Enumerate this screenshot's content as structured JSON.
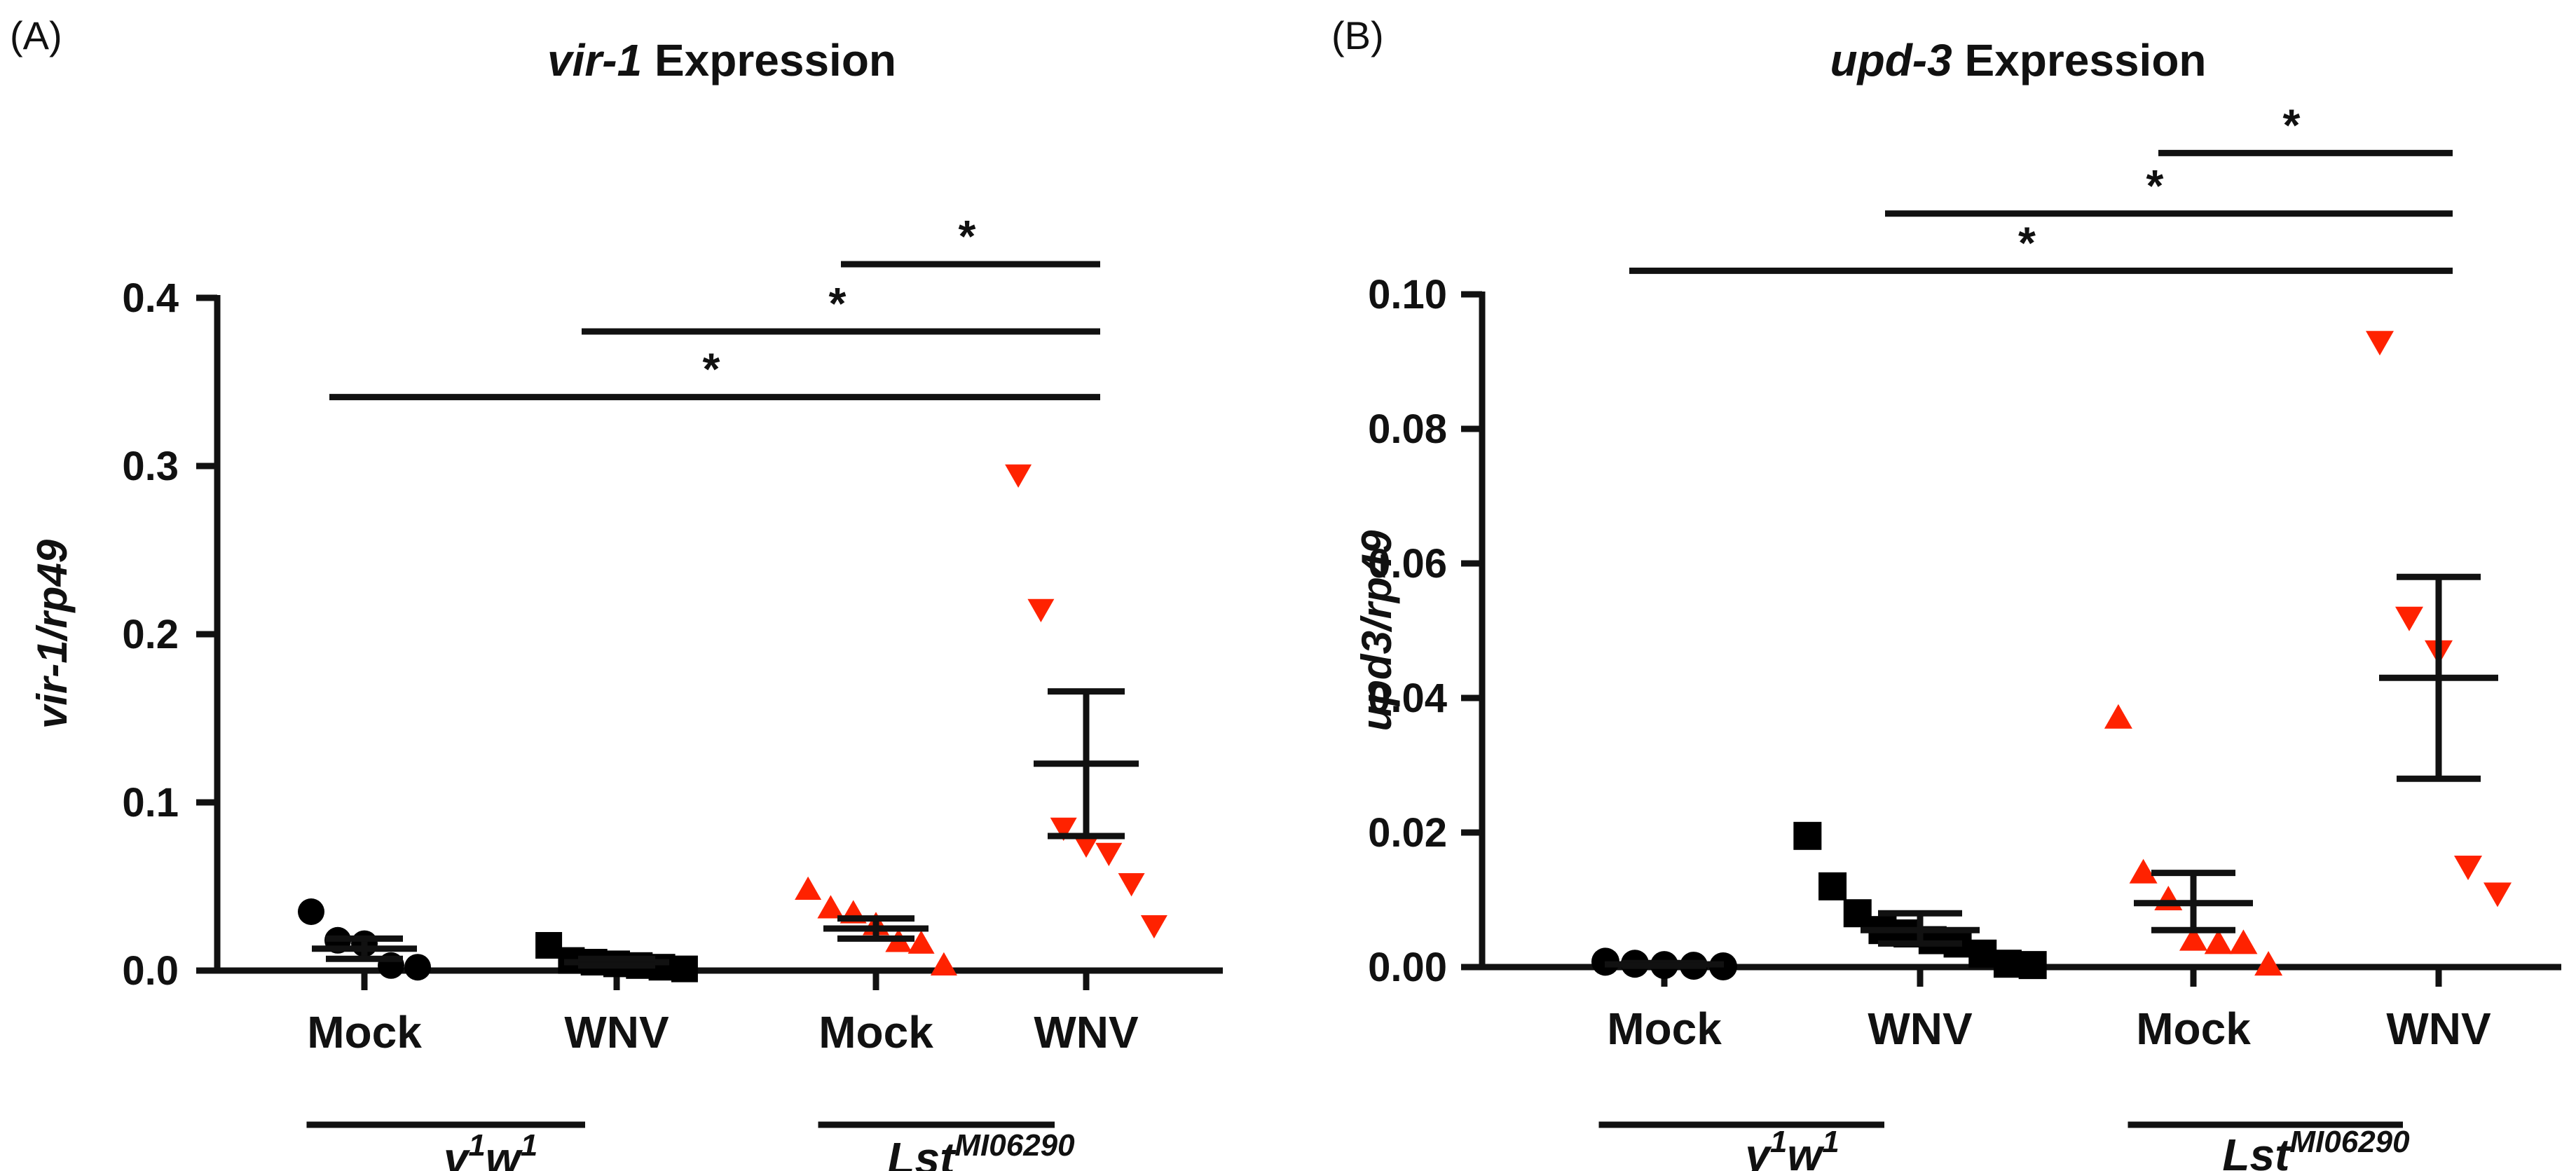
{
  "chart_data": [
    {
      "panel": "(A)",
      "type": "scatter",
      "title_italic": "vir-1",
      "title_rest": "Expression",
      "ylabel": "vir-1/rp49",
      "ylim": [
        0,
        0.4
      ],
      "yticks": [
        0.0,
        0.1,
        0.2,
        0.3,
        0.4
      ],
      "yticklabels": [
        "0.0",
        "0.1",
        "0.2",
        "0.3",
        "0.4"
      ],
      "categories": [
        "Mock",
        "WNV",
        "Mock",
        "WNV"
      ],
      "genotypes": [
        {
          "label_base": "y",
          "sup1": "1",
          "label_mid": "w",
          "sup2": "1",
          "spans": [
            0,
            1
          ]
        },
        {
          "label_base": "Lst",
          "sup1": "MI06290",
          "label_mid": "",
          "sup2": "",
          "spans": [
            2,
            3
          ]
        }
      ],
      "groups": [
        {
          "category": "Mock",
          "genotype": "y1w1",
          "marker": "circle",
          "color": "#000000",
          "points": [
            0.035,
            0.018,
            0.016,
            0.003,
            0.002
          ],
          "mean": 0.013,
          "sem": [
            0.007,
            0.019
          ]
        },
        {
          "category": "WNV",
          "genotype": "y1w1",
          "marker": "square",
          "color": "#000000",
          "points": [
            0.015,
            0.006,
            0.005,
            0.004,
            0.003,
            0.002,
            0.001
          ],
          "mean": 0.005,
          "sem": [
            0.003,
            0.007
          ]
        },
        {
          "category": "Mock",
          "genotype": "LstMI06290",
          "marker": "triangle-up",
          "color": "#ff2200",
          "points": [
            0.048,
            0.037,
            0.034,
            0.027,
            0.017,
            0.016,
            0.003
          ],
          "mean": 0.025,
          "sem": [
            0.019,
            0.031
          ]
        },
        {
          "category": "WNV",
          "genotype": "LstMI06290",
          "marker": "triangle-down",
          "color": "#ff2200",
          "points": [
            0.295,
            0.215,
            0.085,
            0.075,
            0.07,
            0.052,
            0.027
          ],
          "mean": 0.123,
          "sem": [
            0.08,
            0.166
          ]
        }
      ],
      "significance": [
        {
          "from": 2,
          "to": 3,
          "y": 0.42,
          "label": "*"
        },
        {
          "from": 1,
          "to": 3,
          "y": 0.38,
          "label": "*"
        },
        {
          "from": 0,
          "to": 3,
          "y": 0.341,
          "label": "*"
        }
      ]
    },
    {
      "panel": "(B)",
      "type": "scatter",
      "title_italic": "upd-3",
      "title_rest": "Expression",
      "ylabel": "upd3/rp49",
      "ylim": [
        0,
        0.1
      ],
      "yticks": [
        0.0,
        0.02,
        0.04,
        0.06,
        0.08,
        0.1
      ],
      "yticklabels": [
        "0.00",
        "0.02",
        "0.04",
        "0.06",
        "0.08",
        "0.10"
      ],
      "categories": [
        "Mock",
        "WNV",
        "Mock",
        "WNV"
      ],
      "genotypes": [
        {
          "label_base": "y",
          "sup1": "1",
          "label_mid": "w",
          "sup2": "1",
          "spans": [
            0,
            1
          ]
        },
        {
          "label_base": "Lst",
          "sup1": "MI06290",
          "label_mid": "",
          "sup2": "",
          "spans": [
            2,
            3
          ]
        }
      ],
      "groups": [
        {
          "category": "Mock",
          "genotype": "y1w1",
          "marker": "circle",
          "color": "#000000",
          "points": [
            0.0008,
            0.0005,
            0.0003,
            0.0002,
            0.0001
          ],
          "mean": 0.0004,
          "sem": [
            0.0002,
            0.0006
          ]
        },
        {
          "category": "WNV",
          "genotype": "y1w1",
          "marker": "square",
          "color": "#000000",
          "points": [
            0.0195,
            0.012,
            0.008,
            0.0055,
            0.005,
            0.004,
            0.0035,
            0.002,
            0.0005,
            0.0003
          ],
          "mean": 0.0055,
          "sem": [
            0.0035,
            0.008
          ]
        },
        {
          "category": "Mock",
          "genotype": "LstMI06290",
          "marker": "triangle-up",
          "color": "#ff2200",
          "points": [
            0.037,
            0.014,
            0.01,
            0.004,
            0.0035,
            0.0035,
            0.0003
          ],
          "mean": 0.0095,
          "sem": [
            0.0055,
            0.014
          ]
        },
        {
          "category": "WNV",
          "genotype": "LstMI06290",
          "marker": "triangle-down",
          "color": "#ff2200",
          "points": [
            0.093,
            0.052,
            0.047,
            0.015,
            0.011
          ],
          "mean": 0.043,
          "sem": [
            0.028,
            0.058
          ]
        }
      ],
      "significance": [
        {
          "from": 2,
          "to": 3,
          "y": 0.121,
          "label": "*"
        },
        {
          "from": 1,
          "to": 3,
          "y": 0.112,
          "label": "*"
        },
        {
          "from": 0,
          "to": 3,
          "y": 0.1035,
          "label": "*"
        }
      ]
    }
  ]
}
